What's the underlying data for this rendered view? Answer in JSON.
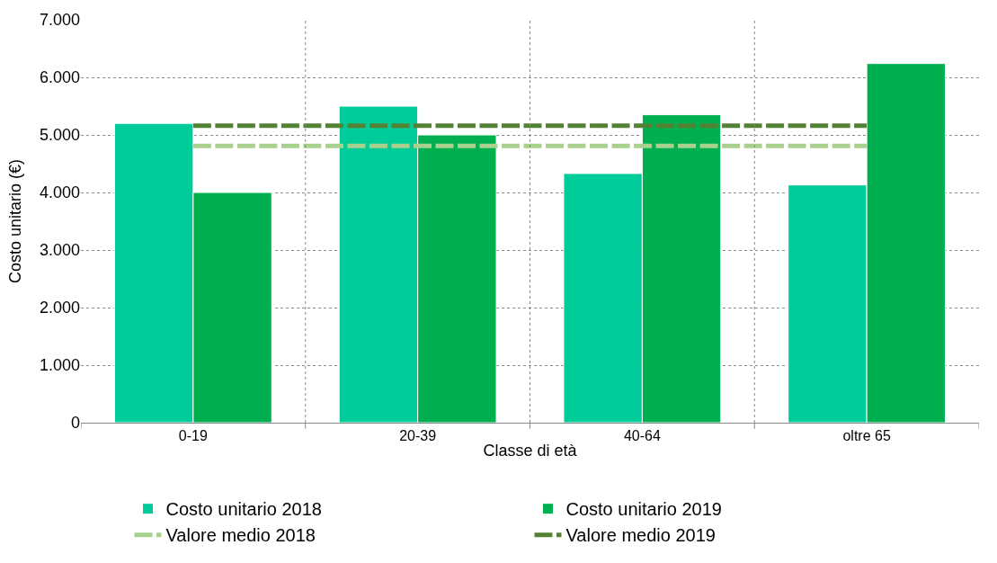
{
  "chart_data": {
    "type": "bar",
    "xlabel": "Classe di età",
    "ylabel": "Costo unitario (€)",
    "categories": [
      "0-19",
      "20-39",
      "40-64",
      "oltre 65"
    ],
    "series": [
      {
        "name": "Costo unitario 2018",
        "color": "#00cc99",
        "values": [
          5200,
          5500,
          4330,
          4130
        ]
      },
      {
        "name": "Costo unitario 2019",
        "color": "#00b050",
        "values": [
          4000,
          5000,
          5350,
          6240
        ]
      },
      {
        "name": "Valore medio 2018",
        "type": "line",
        "color": "#a9d18e",
        "line_style": "dashed",
        "values": [
          4810,
          4810,
          4810,
          4810
        ]
      },
      {
        "name": "Valore medio 2019",
        "type": "line",
        "color": "#548235",
        "line_style": "dashed",
        "values": [
          5160,
          5160,
          5160,
          5160
        ]
      }
    ],
    "ylim": [
      0,
      7000
    ],
    "yticks": [
      0,
      {
        "value": 1000,
        "label": "1.000"
      },
      {
        "value": 2000,
        "label": "2.000"
      },
      {
        "value": 3000,
        "label": "3.000"
      },
      {
        "value": 4000,
        "label": "4.000"
      },
      {
        "value": 5000,
        "label": "5.000"
      },
      {
        "value": 6000,
        "label": "6.000"
      },
      {
        "value": 7000,
        "label": "7.000"
      }
    ],
    "grid": true,
    "legend": "bottom",
    "marker": "none"
  }
}
